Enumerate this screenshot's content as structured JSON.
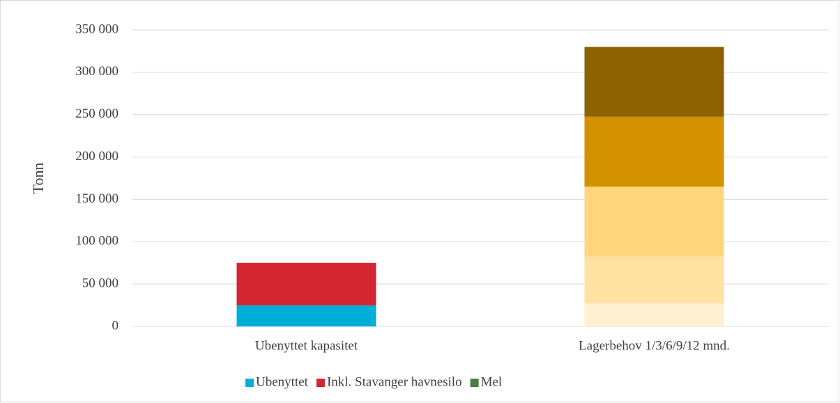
{
  "chart_data": {
    "type": "stacked_bar",
    "y_label": "Tonn",
    "categories": [
      "Ubenyttet kapasitet",
      "Lagerbehov 1/3/6/9/12 mnd."
    ],
    "series": [
      {
        "name": "Ubenyttet",
        "color": "#00afd7",
        "values": [
          25000,
          null
        ]
      },
      {
        "name": "Inkl. Stavanger havnesilo",
        "color": "#d32631",
        "values": [
          50000,
          null
        ]
      },
      {
        "name": "Mel",
        "color": "#4a7d3e",
        "values": [
          null,
          null
        ]
      },
      {
        "color": "#fff0d2",
        "values": [
          null,
          27500
        ]
      },
      {
        "color": "#ffe2a1",
        "values": [
          null,
          55000
        ]
      },
      {
        "color": "#ffd67b",
        "values": [
          null,
          82500
        ]
      },
      {
        "color": "#d49200",
        "values": [
          null,
          82500
        ]
      },
      {
        "color": "#8d6200",
        "values": [
          null,
          82500
        ]
      }
    ],
    "ylim": [
      0,
      350000
    ],
    "yticks": [
      0,
      {
        "value": 50000,
        "label": "50 000"
      },
      {
        "value": 100000,
        "label": "100 000"
      },
      {
        "value": 150000,
        "label": "150 000"
      },
      {
        "value": 200000,
        "label": "200 000"
      },
      {
        "value": 250000,
        "label": "250 000"
      },
      {
        "value": 300000,
        "label": "300 000"
      },
      {
        "value": 350000,
        "label": "350 000"
      }
    ],
    "grid": true
  }
}
